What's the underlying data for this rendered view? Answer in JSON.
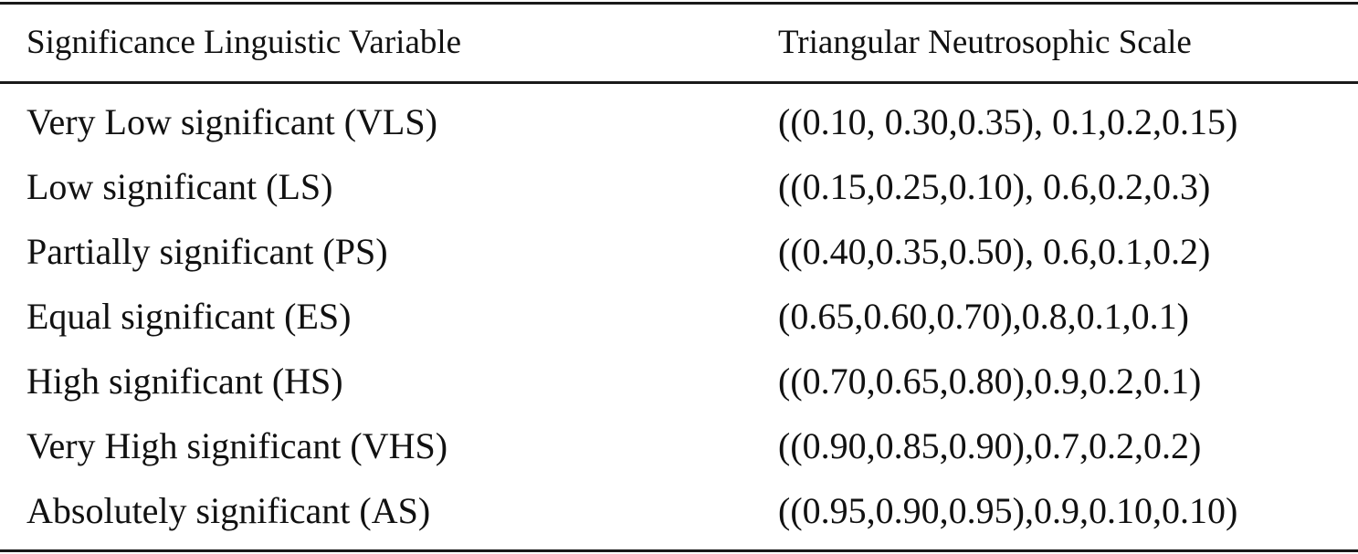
{
  "table": {
    "headers": [
      "Significance Linguistic Variable",
      "Triangular Neutrosophic Scale"
    ],
    "rows": [
      [
        "Very Low significant (VLS)",
        "((0.10, 0.30,0.35), 0.1,0.2,0.15)"
      ],
      [
        "Low significant (LS)",
        "((0.15,0.25,0.10), 0.6,0.2,0.3)"
      ],
      [
        "Partially significant (PS)",
        "((0.40,0.35,0.50), 0.6,0.1,0.2)"
      ],
      [
        "Equal significant (ES)",
        "(0.65,0.60,0.70),0.8,0.1,0.1)"
      ],
      [
        "High significant (HS)",
        "((0.70,0.65,0.80),0.9,0.2,0.1)"
      ],
      [
        "Very High significant (VHS)",
        "((0.90,0.85,0.90),0.7,0.2,0.2)"
      ],
      [
        "Absolutely significant (AS)",
        "((0.95,0.90,0.95),0.9,0.10,0.10)"
      ]
    ]
  }
}
